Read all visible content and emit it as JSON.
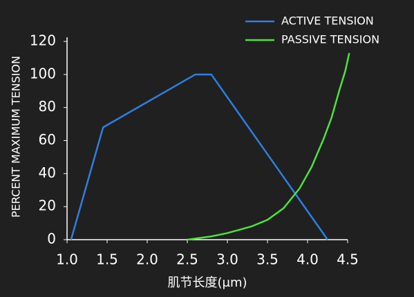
{
  "chart_data": {
    "type": "line",
    "x_label": "肌节长度(μm)",
    "y_label": "PERCENT MAXIMUM TENSION",
    "xlim": [
      1,
      4.5
    ],
    "xticks": [
      {
        "value": 1,
        "label": "1.0"
      },
      {
        "value": 1.5,
        "label": "1.5"
      },
      {
        "value": 2,
        "label": "2.0"
      },
      {
        "value": 2.5,
        "label": "2.5"
      },
      {
        "value": 3,
        "label": "3.0"
      },
      {
        "value": 3.5,
        "label": "3.5"
      },
      {
        "value": 4,
        "label": "4.0"
      },
      {
        "value": 4.5,
        "label": "4.5"
      }
    ],
    "ylim": [
      0,
      120
    ],
    "yticks": [
      0,
      20,
      40,
      60,
      80,
      100,
      120
    ],
    "grid": false,
    "legend": "top-right",
    "series": [
      {
        "name": "ACTIVE TENSION",
        "color": "#2e7fe0",
        "x": [
          1.05,
          1.45,
          2.6,
          2.8,
          4.25
        ],
        "values": [
          0,
          68,
          100,
          100,
          0
        ]
      },
      {
        "name": "PASSIVE TENSION",
        "color": "#4ee33a",
        "x": [
          2.5,
          2.8,
          3.0,
          3.3,
          3.5,
          3.7,
          3.9,
          4.05,
          4.2,
          4.3,
          4.4,
          4.47,
          4.52
        ],
        "values": [
          0,
          2,
          4,
          8,
          12,
          19,
          31,
          44,
          61,
          74,
          91,
          102,
          113
        ]
      }
    ]
  }
}
